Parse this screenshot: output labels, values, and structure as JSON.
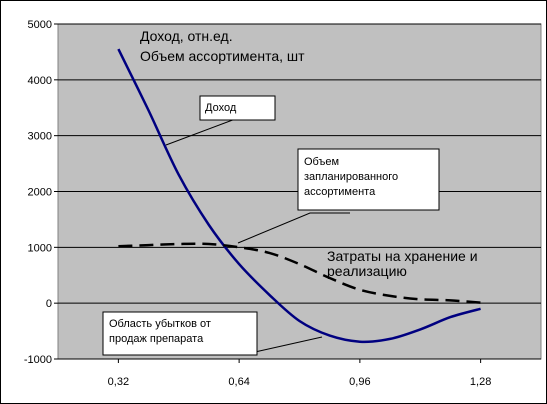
{
  "chart_data": {
    "type": "line",
    "title": "",
    "xlabel": "",
    "ylabel": "",
    "xlim": [
      0.16,
      1.44
    ],
    "ylim": [
      -1000,
      5000
    ],
    "grid": "horizontal",
    "legend": "none",
    "x_ticks": [
      "0,32",
      "0,64",
      "0,96",
      "1,28"
    ],
    "y_ticks": [
      "5000",
      "4000",
      "3000",
      "2000",
      "1000",
      "0",
      "-1000"
    ],
    "series": [
      {
        "key": "income",
        "x": [
          0.32,
          0.4,
          0.48,
          0.56,
          0.64,
          0.72,
          0.8,
          0.88,
          0.96,
          1.04,
          1.12,
          1.2,
          1.28
        ],
        "y": [
          4550,
          3450,
          2300,
          1400,
          700,
          150,
          -320,
          -580,
          -690,
          -640,
          -470,
          -250,
          -100
        ],
        "color": "#000080",
        "style": "solid"
      },
      {
        "key": "planned-assortment",
        "x": [
          0.32,
          0.4,
          0.48,
          0.56,
          0.64,
          0.72,
          0.8,
          0.88,
          0.96,
          1.04,
          1.12,
          1.2,
          1.28
        ],
        "y": [
          1020,
          1040,
          1060,
          1060,
          1000,
          900,
          700,
          450,
          240,
          130,
          70,
          50,
          10
        ],
        "color": "#000000",
        "style": "dashed"
      }
    ],
    "annotations": {
      "axis_caption_line1": "Доход, отн.ед.",
      "axis_caption_line2": "Объем ассортимента, шт",
      "callout_income": "Доход",
      "callout_planned_1": "Объем",
      "callout_planned_2": "запланированного",
      "callout_planned_3": "ассортимента",
      "cost_label_1": "Затраты на хранение и",
      "cost_label_2": "реализацию",
      "loss_area_1": "Область убытков от",
      "loss_area_2": "продаж препарата"
    }
  }
}
